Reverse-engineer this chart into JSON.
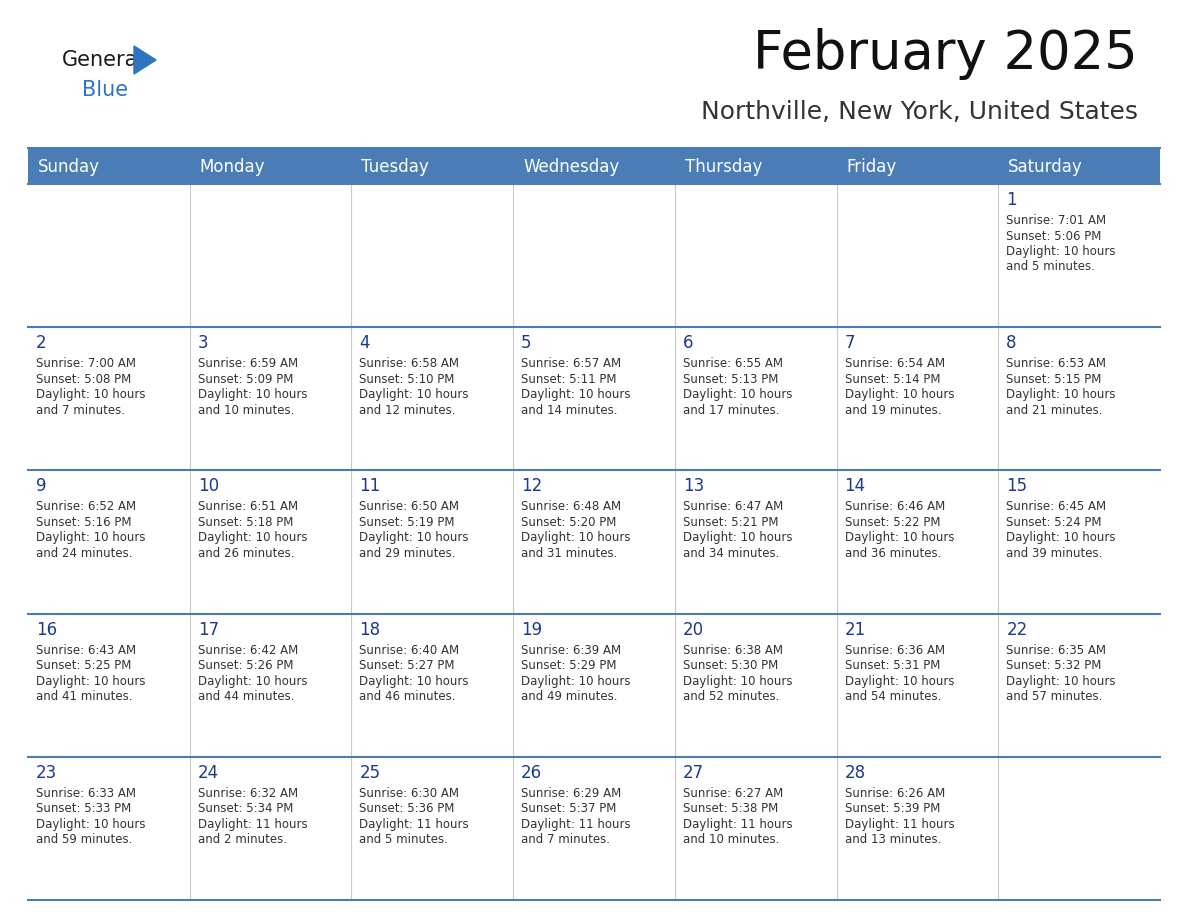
{
  "title": "February 2025",
  "subtitle": "Northville, New York, United States",
  "header_bg": "#4a7db5",
  "header_text_color": "#ffffff",
  "cell_bg": "#ffffff",
  "text_color": "#333333",
  "day_number_color": "#1a3a8c",
  "border_color": "#4a7db5",
  "days_of_week": [
    "Sunday",
    "Monday",
    "Tuesday",
    "Wednesday",
    "Thursday",
    "Friday",
    "Saturday"
  ],
  "weeks": [
    [
      {
        "day": null,
        "info": null
      },
      {
        "day": null,
        "info": null
      },
      {
        "day": null,
        "info": null
      },
      {
        "day": null,
        "info": null
      },
      {
        "day": null,
        "info": null
      },
      {
        "day": null,
        "info": null
      },
      {
        "day": "1",
        "info": "Sunrise: 7:01 AM\nSunset: 5:06 PM\nDaylight: 10 hours\nand 5 minutes."
      }
    ],
    [
      {
        "day": "2",
        "info": "Sunrise: 7:00 AM\nSunset: 5:08 PM\nDaylight: 10 hours\nand 7 minutes."
      },
      {
        "day": "3",
        "info": "Sunrise: 6:59 AM\nSunset: 5:09 PM\nDaylight: 10 hours\nand 10 minutes."
      },
      {
        "day": "4",
        "info": "Sunrise: 6:58 AM\nSunset: 5:10 PM\nDaylight: 10 hours\nand 12 minutes."
      },
      {
        "day": "5",
        "info": "Sunrise: 6:57 AM\nSunset: 5:11 PM\nDaylight: 10 hours\nand 14 minutes."
      },
      {
        "day": "6",
        "info": "Sunrise: 6:55 AM\nSunset: 5:13 PM\nDaylight: 10 hours\nand 17 minutes."
      },
      {
        "day": "7",
        "info": "Sunrise: 6:54 AM\nSunset: 5:14 PM\nDaylight: 10 hours\nand 19 minutes."
      },
      {
        "day": "8",
        "info": "Sunrise: 6:53 AM\nSunset: 5:15 PM\nDaylight: 10 hours\nand 21 minutes."
      }
    ],
    [
      {
        "day": "9",
        "info": "Sunrise: 6:52 AM\nSunset: 5:16 PM\nDaylight: 10 hours\nand 24 minutes."
      },
      {
        "day": "10",
        "info": "Sunrise: 6:51 AM\nSunset: 5:18 PM\nDaylight: 10 hours\nand 26 minutes."
      },
      {
        "day": "11",
        "info": "Sunrise: 6:50 AM\nSunset: 5:19 PM\nDaylight: 10 hours\nand 29 minutes."
      },
      {
        "day": "12",
        "info": "Sunrise: 6:48 AM\nSunset: 5:20 PM\nDaylight: 10 hours\nand 31 minutes."
      },
      {
        "day": "13",
        "info": "Sunrise: 6:47 AM\nSunset: 5:21 PM\nDaylight: 10 hours\nand 34 minutes."
      },
      {
        "day": "14",
        "info": "Sunrise: 6:46 AM\nSunset: 5:22 PM\nDaylight: 10 hours\nand 36 minutes."
      },
      {
        "day": "15",
        "info": "Sunrise: 6:45 AM\nSunset: 5:24 PM\nDaylight: 10 hours\nand 39 minutes."
      }
    ],
    [
      {
        "day": "16",
        "info": "Sunrise: 6:43 AM\nSunset: 5:25 PM\nDaylight: 10 hours\nand 41 minutes."
      },
      {
        "day": "17",
        "info": "Sunrise: 6:42 AM\nSunset: 5:26 PM\nDaylight: 10 hours\nand 44 minutes."
      },
      {
        "day": "18",
        "info": "Sunrise: 6:40 AM\nSunset: 5:27 PM\nDaylight: 10 hours\nand 46 minutes."
      },
      {
        "day": "19",
        "info": "Sunrise: 6:39 AM\nSunset: 5:29 PM\nDaylight: 10 hours\nand 49 minutes."
      },
      {
        "day": "20",
        "info": "Sunrise: 6:38 AM\nSunset: 5:30 PM\nDaylight: 10 hours\nand 52 minutes."
      },
      {
        "day": "21",
        "info": "Sunrise: 6:36 AM\nSunset: 5:31 PM\nDaylight: 10 hours\nand 54 minutes."
      },
      {
        "day": "22",
        "info": "Sunrise: 6:35 AM\nSunset: 5:32 PM\nDaylight: 10 hours\nand 57 minutes."
      }
    ],
    [
      {
        "day": "23",
        "info": "Sunrise: 6:33 AM\nSunset: 5:33 PM\nDaylight: 10 hours\nand 59 minutes."
      },
      {
        "day": "24",
        "info": "Sunrise: 6:32 AM\nSunset: 5:34 PM\nDaylight: 11 hours\nand 2 minutes."
      },
      {
        "day": "25",
        "info": "Sunrise: 6:30 AM\nSunset: 5:36 PM\nDaylight: 11 hours\nand 5 minutes."
      },
      {
        "day": "26",
        "info": "Sunrise: 6:29 AM\nSunset: 5:37 PM\nDaylight: 11 hours\nand 7 minutes."
      },
      {
        "day": "27",
        "info": "Sunrise: 6:27 AM\nSunset: 5:38 PM\nDaylight: 11 hours\nand 10 minutes."
      },
      {
        "day": "28",
        "info": "Sunrise: 6:26 AM\nSunset: 5:39 PM\nDaylight: 11 hours\nand 13 minutes."
      },
      {
        "day": null,
        "info": null
      }
    ]
  ],
  "logo_color_general": "#1a1a1a",
  "logo_color_blue": "#2e74c0",
  "logo_triangle_color": "#2e74c0"
}
